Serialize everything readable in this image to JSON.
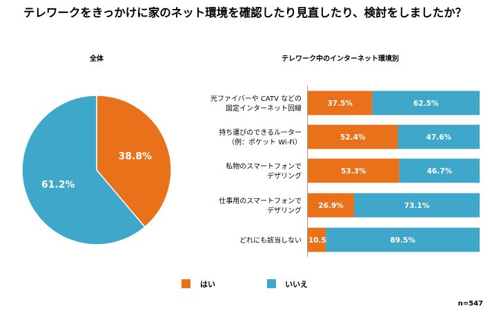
{
  "chart_data": [
    {
      "type": "pie",
      "title": "全体",
      "slices": [
        {
          "name": "はい",
          "value": 38.8,
          "label": "38.8%",
          "color": "#E8711A"
        },
        {
          "name": "いいえ",
          "value": 61.2,
          "label": "61.2%",
          "color": "#3FA7C9"
        }
      ]
    },
    {
      "type": "bar",
      "orientation": "horizontal",
      "stacked": true,
      "title": "テレワーク中のインターネット環境別",
      "categories": [
        [
          "光ファイバーや CATV などの",
          "固定インターネット回線"
        ],
        [
          "持ち運びのできるルーター",
          "（例：ポケット Wi-Fi）"
        ],
        [
          "私物のスマートフォンで",
          "デザリング"
        ],
        [
          "仕事用のスマートフォンで",
          "デザリング"
        ],
        [
          "どれにも該当しない"
        ]
      ],
      "series": [
        {
          "name": "はい",
          "color": "#E8711A",
          "values": [
            37.5,
            52.4,
            53.3,
            26.9,
            10.5
          ],
          "labels": [
            "37.5%",
            "52.4%",
            "53.3%",
            "26.9%",
            "10.5%"
          ]
        },
        {
          "name": "いいえ",
          "color": "#3FA7C9",
          "values": [
            62.5,
            47.6,
            46.7,
            73.1,
            89.5
          ],
          "labels": [
            "62.5%",
            "47.6%",
            "46.7%",
            "73.1%",
            "89.5%"
          ]
        }
      ],
      "xlim": [
        0,
        100
      ],
      "grid": false
    }
  ],
  "title": "テレワークをきっかけに家のネット環境を確認したり見直したり、検討をしましたか？",
  "legend": {
    "position": "bottom",
    "items": [
      {
        "label": "はい",
        "color": "#E8711A"
      },
      {
        "label": "いいえ",
        "color": "#3FA7C9"
      }
    ]
  },
  "sample_size": "n=547"
}
